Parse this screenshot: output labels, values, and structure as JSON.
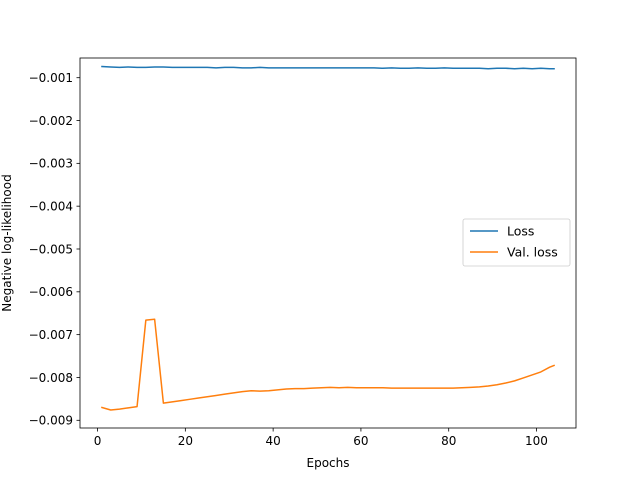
{
  "chart_data": {
    "type": "line",
    "xlabel": "Epochs",
    "ylabel": "Negative log-likelihood",
    "xlim": [
      -4,
      109
    ],
    "ylim": [
      -0.00918,
      -0.00054
    ],
    "xticks": [
      0,
      20,
      40,
      60,
      80,
      100
    ],
    "xtick_labels": [
      "0",
      "20",
      "40",
      "60",
      "80",
      "100"
    ],
    "yticks": [
      -0.001,
      -0.002,
      -0.003,
      -0.004,
      -0.005,
      -0.006,
      -0.007,
      -0.008,
      -0.009
    ],
    "ytick_labels": [
      "−0.001",
      "−0.002",
      "−0.003",
      "−0.004",
      "−0.005",
      "−0.006",
      "−0.007",
      "−0.008",
      "−0.009"
    ],
    "grid": false,
    "legend_position": "center-right",
    "x": [
      1,
      3,
      5,
      7,
      9,
      11,
      13,
      15,
      17,
      19,
      21,
      23,
      25,
      27,
      29,
      31,
      33,
      35,
      37,
      39,
      41,
      43,
      45,
      47,
      49,
      51,
      53,
      55,
      57,
      59,
      61,
      63,
      65,
      67,
      69,
      71,
      73,
      75,
      77,
      79,
      81,
      83,
      85,
      87,
      89,
      91,
      93,
      95,
      97,
      99,
      101,
      103,
      104
    ],
    "series": [
      {
        "name": "Loss",
        "color": "#1f77b4",
        "values": [
          -0.00074,
          -0.00075,
          -0.00076,
          -0.00075,
          -0.00076,
          -0.00076,
          -0.00075,
          -0.00075,
          -0.00076,
          -0.00076,
          -0.00076,
          -0.00076,
          -0.00076,
          -0.00077,
          -0.00076,
          -0.00076,
          -0.00077,
          -0.00077,
          -0.00076,
          -0.00077,
          -0.00077,
          -0.00077,
          -0.00077,
          -0.00077,
          -0.00077,
          -0.00077,
          -0.00077,
          -0.00077,
          -0.00077,
          -0.00077,
          -0.00077,
          -0.00077,
          -0.00078,
          -0.00077,
          -0.00078,
          -0.00078,
          -0.00077,
          -0.00078,
          -0.00078,
          -0.00077,
          -0.00078,
          -0.00078,
          -0.00078,
          -0.00078,
          -0.00079,
          -0.00078,
          -0.00078,
          -0.00079,
          -0.00078,
          -0.00079,
          -0.00078,
          -0.00079,
          -0.00079
        ]
      },
      {
        "name": "Val. loss",
        "color": "#ff7f0e",
        "values": [
          -0.0087,
          -0.00876,
          -0.00874,
          -0.00871,
          -0.00868,
          -0.00666,
          -0.00664,
          -0.0086,
          -0.00857,
          -0.00854,
          -0.00851,
          -0.00848,
          -0.00845,
          -0.00842,
          -0.00839,
          -0.00836,
          -0.00833,
          -0.00831,
          -0.00832,
          -0.00831,
          -0.00829,
          -0.00827,
          -0.00826,
          -0.00826,
          -0.00825,
          -0.00824,
          -0.00823,
          -0.00824,
          -0.00823,
          -0.00824,
          -0.00824,
          -0.00824,
          -0.00824,
          -0.00825,
          -0.00825,
          -0.00825,
          -0.00825,
          -0.00825,
          -0.00825,
          -0.00825,
          -0.00825,
          -0.00824,
          -0.00823,
          -0.00822,
          -0.0082,
          -0.00817,
          -0.00813,
          -0.00808,
          -0.00801,
          -0.00794,
          -0.00787,
          -0.00776,
          -0.00772
        ]
      }
    ]
  }
}
